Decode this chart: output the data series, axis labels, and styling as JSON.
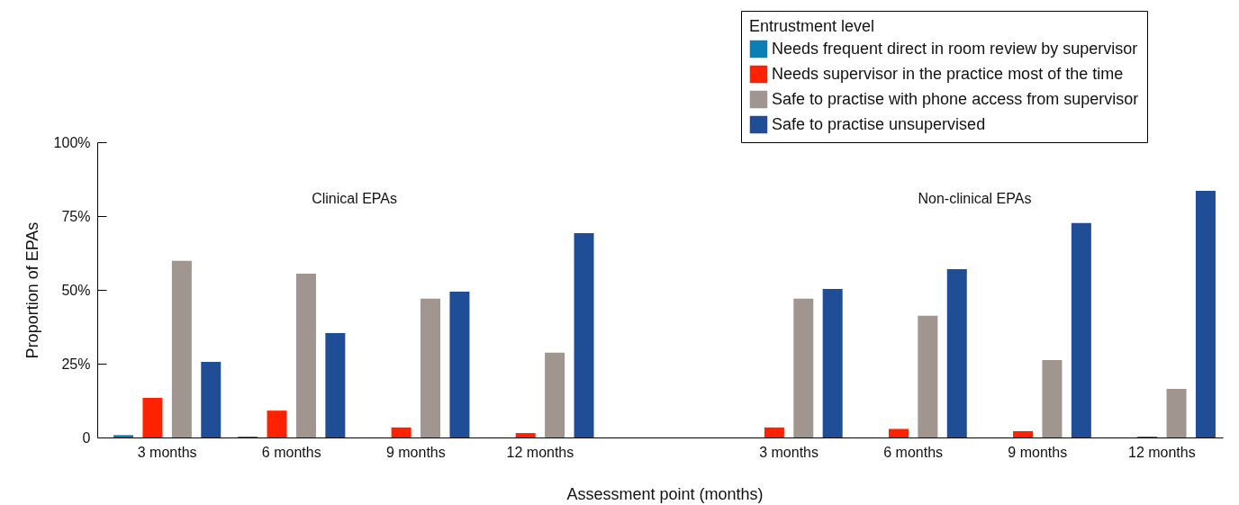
{
  "chart_data": {
    "type": "bar",
    "xlabel": "Assessment point (months)",
    "ylabel": "Proportion of EPAs",
    "legend_title": "Entrustment level",
    "legend": "top right",
    "grid": false,
    "categories": [
      "3 months",
      "6 months",
      "9 months",
      "12 months",
      null,
      "3 months",
      "6 months",
      "9 months",
      "12 months"
    ],
    "ylim": [
      0,
      100
    ],
    "yticks": [
      {
        "value": 0,
        "label": "0"
      },
      {
        "value": 25,
        "label": "25%"
      },
      {
        "value": 50,
        "label": "50%"
      },
      {
        "value": 75,
        "label": "75%"
      },
      {
        "value": 100,
        "label": "100%"
      }
    ],
    "annotations": [
      "Clinical EPAs",
      "Non-clinical EPAs"
    ],
    "series": [
      {
        "name": "Needs frequent direct in room review by supervisor",
        "color": "#0a7fb5",
        "values": [
          0.8,
          0.3,
          0,
          0,
          null,
          0,
          0,
          0,
          0
        ]
      },
      {
        "name": "Needs supervisor in the practice most of the time",
        "color": "#ff2200",
        "values": [
          13.4,
          9.1,
          3.4,
          1.5,
          null,
          3.4,
          2.9,
          2.1,
          0.3
        ]
      },
      {
        "name": "Safe to practise with phone access from supervisor",
        "color": "#a0968f",
        "values": [
          59.8,
          55.5,
          47,
          28.7,
          null,
          47,
          41.2,
          26.2,
          16.5
        ]
      },
      {
        "name": "Safe to practise unsupervised",
        "color": "#1f4e96",
        "values": [
          25.6,
          35.4,
          49.4,
          69.2,
          null,
          50.3,
          57,
          72.6,
          83.5
        ]
      }
    ]
  }
}
